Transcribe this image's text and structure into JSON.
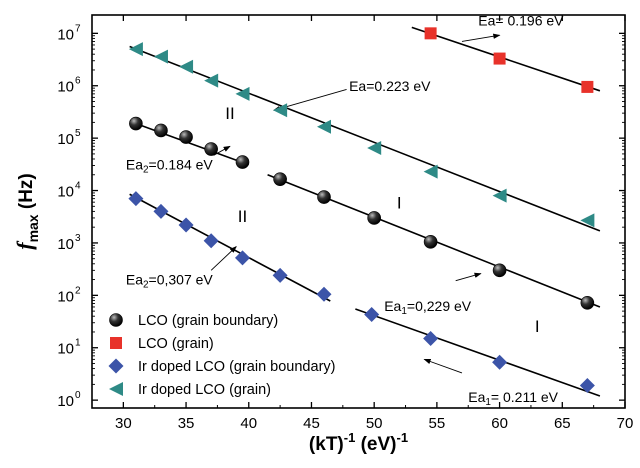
{
  "chart_data": {
    "type": "scatter",
    "xlabel": "(kT)⁻¹ (eV)⁻¹",
    "ylabel_main": "f",
    "ylabel_sub": "max",
    "ylabel_unit": "(Hz)",
    "xlim": [
      27.5,
      70
    ],
    "xticks": [
      30,
      35,
      40,
      45,
      50,
      55,
      60,
      65,
      70
    ],
    "ylim_log10": [
      -0.15,
      7.35
    ],
    "yticks": [
      {
        "exp": 0,
        "label": "10",
        "sup": "0"
      },
      {
        "exp": 1,
        "label": "10",
        "sup": "1"
      },
      {
        "exp": 2,
        "label": "10",
        "sup": "2"
      },
      {
        "exp": 3,
        "label": "10",
        "sup": "3"
      },
      {
        "exp": 4,
        "label": "10",
        "sup": "4"
      },
      {
        "exp": 5,
        "label": "10",
        "sup": "5"
      },
      {
        "exp": 6,
        "label": "10",
        "sup": "6"
      },
      {
        "exp": 7,
        "label": "10",
        "sup": "7"
      }
    ],
    "y_scale": "log",
    "legend_position": "bottom-left",
    "series": [
      {
        "name": "LCO (grain boundary)",
        "marker": "sphere",
        "color": "#111111",
        "points": [
          {
            "x": 31.0,
            "y": 190000
          },
          {
            "x": 33.0,
            "y": 140000
          },
          {
            "x": 35.0,
            "y": 105000
          },
          {
            "x": 37.0,
            "y": 62000
          },
          {
            "x": 39.5,
            "y": 35000
          },
          {
            "x": 42.5,
            "y": 16500
          },
          {
            "x": 46.0,
            "y": 7500
          },
          {
            "x": 50.0,
            "y": 3000
          },
          {
            "x": 54.5,
            "y": 1050
          },
          {
            "x": 60.0,
            "y": 300
          },
          {
            "x": 67.0,
            "y": 72
          }
        ]
      },
      {
        "name": "LCO (grain)",
        "marker": "square",
        "color": "#e8322a",
        "points": [
          {
            "x": 54.5,
            "y": 10000000
          },
          {
            "x": 60.0,
            "y": 3300000
          },
          {
            "x": 67.0,
            "y": 950000
          }
        ]
      },
      {
        "name": "Ir doped LCO (grain boundary)",
        "marker": "diamond",
        "color": "#3c54a8",
        "points": [
          {
            "x": 31.0,
            "y": 7000
          },
          {
            "x": 33.0,
            "y": 4000
          },
          {
            "x": 35.0,
            "y": 2200
          },
          {
            "x": 37.0,
            "y": 1100
          },
          {
            "x": 39.5,
            "y": 520
          },
          {
            "x": 42.5,
            "y": 240
          },
          {
            "x": 46.0,
            "y": 105
          },
          {
            "x": 49.8,
            "y": 43
          },
          {
            "x": 54.5,
            "y": 15
          },
          {
            "x": 60.0,
            "y": 5.3
          },
          {
            "x": 67.0,
            "y": 1.9
          }
        ]
      },
      {
        "name": "Ir doped LCO (grain)",
        "marker": "triangle-left",
        "color": "#2e8a86",
        "points": [
          {
            "x": 31.0,
            "y": 5000000
          },
          {
            "x": 33.0,
            "y": 3600000
          },
          {
            "x": 35.0,
            "y": 2300000
          },
          {
            "x": 37.0,
            "y": 1250000
          },
          {
            "x": 39.5,
            "y": 700000
          },
          {
            "x": 42.5,
            "y": 340000
          },
          {
            "x": 46.0,
            "y": 165000
          },
          {
            "x": 50.0,
            "y": 65000
          },
          {
            "x": 54.5,
            "y": 23000
          },
          {
            "x": 60.0,
            "y": 8000
          },
          {
            "x": 67.0,
            "y": 2700
          }
        ]
      }
    ],
    "fit_lines": [
      {
        "x1": 53.0,
        "y1": 13000000,
        "x2": 68.0,
        "y2": 800000
      },
      {
        "x1": 30.5,
        "y1": 5600000,
        "x2": 68.0,
        "y2": 1700
      },
      {
        "x1": 30.5,
        "y1": 210000,
        "x2": 40.0,
        "y2": 31000
      },
      {
        "x1": 41.5,
        "y1": 20000,
        "x2": 68.0,
        "y2": 60
      },
      {
        "x1": 30.5,
        "y1": 8500,
        "x2": 46.5,
        "y2": 78
      },
      {
        "x1": 48.5,
        "y1": 55,
        "x2": 68.0,
        "y2": 1.2
      }
    ],
    "annotations": [
      {
        "text": "Ea= 0.196 eV",
        "anchor": "start",
        "tx": 58.3,
        "ty": 14000000,
        "arrow_from": [
          57.0,
          7000000
        ],
        "arrow_to": [
          60.0,
          9200000
        ]
      },
      {
        "text": "Ea=0.223 eV",
        "anchor": "start",
        "tx": 48.0,
        "ty": 800000,
        "arrow_from": [
          47.8,
          850000
        ],
        "arrow_to": [
          42.0,
          340000
        ]
      },
      {
        "text": "Ea2=0.184 eV",
        "anchor": "start",
        "tx": 30.2,
        "ty": 25000,
        "arrow_from": [
          37.2,
          47000
        ],
        "arrow_to": [
          38.5,
          70000
        ]
      },
      {
        "text": "Ea2=0,307 eV",
        "anchor": "start",
        "tx": 30.2,
        "ty": 160,
        "arrow_from": [
          37.0,
          300
        ],
        "arrow_to": [
          39.0,
          850
        ]
      },
      {
        "text": "Ea1=0,229 eV",
        "anchor": "start",
        "tx": 50.8,
        "ty": 50,
        "arrow_from": [
          56.5,
          190
        ],
        "arrow_to": [
          58.5,
          260
        ]
      },
      {
        "text": "Ea1= 0.211 eV",
        "anchor": "start",
        "tx": 57.5,
        "ty": 0.93,
        "arrow_from": [
          57.0,
          3.3
        ],
        "arrow_to": [
          54.0,
          6
        ]
      }
    ],
    "roman_labels": [
      {
        "text": "II",
        "x": 38.5,
        "y": 230000
      },
      {
        "text": "I",
        "x": 52.0,
        "y": 4500
      },
      {
        "text": "II",
        "x": 39.5,
        "y": 2500
      },
      {
        "text": "I",
        "x": 63.0,
        "y": 20
      }
    ]
  }
}
